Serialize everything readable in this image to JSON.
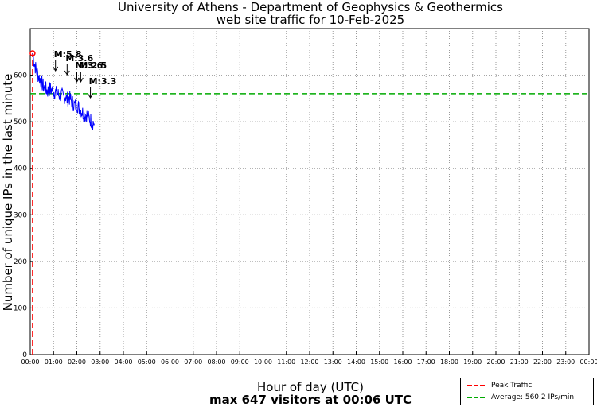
{
  "header": {
    "title": "University of Athens - Department of Geophysics & Geothermics",
    "subtitle": "web site traffic for 10-Feb-2025"
  },
  "footer": {
    "xlabel": "Hour of day (UTC)",
    "summary": "max 647 visitors at 00:06 UTC"
  },
  "legend": {
    "peak": "Peak Traffic",
    "average": "Average: 560.2 IPs/min"
  },
  "colors": {
    "traffic": "#0000ff",
    "peak": "#ff0000",
    "average": "#00aa00",
    "grid": "#9a9a9a"
  },
  "chart_data": {
    "type": "line",
    "title": "University of Athens - Department of Geophysics & Geothermics",
    "subtitle": "web site traffic for 10-Feb-2025",
    "xlabel": "Hour of day (UTC)",
    "ylabel": "Number of unique IPs in the last minute",
    "xlim": [
      "00:00",
      "24:00"
    ],
    "ylim": [
      0,
      700
    ],
    "grid": true,
    "x_ticks": [
      "00:00",
      "01:00",
      "02:00",
      "03:00",
      "04:00",
      "05:00",
      "06:00",
      "07:00",
      "08:00",
      "09:00",
      "10:00",
      "11:00",
      "12:00",
      "13:00",
      "14:00",
      "15:00",
      "16:00",
      "17:00",
      "18:00",
      "19:00",
      "20:00",
      "21:00",
      "22:00",
      "23:00",
      "00:00"
    ],
    "y_ticks": [
      0,
      100,
      200,
      300,
      400,
      500,
      600
    ],
    "series": [
      {
        "name": "traffic",
        "x": [
          "00:06",
          "00:10",
          "00:15",
          "00:20",
          "00:25",
          "00:30",
          "00:35",
          "00:40",
          "00:45",
          "00:50",
          "00:55",
          "01:00",
          "01:05",
          "01:10",
          "01:15",
          "01:20",
          "01:25",
          "01:30",
          "01:35",
          "01:40",
          "01:45",
          "01:50",
          "01:55",
          "02:00",
          "02:05",
          "02:10",
          "02:15",
          "02:20",
          "02:25",
          "02:30",
          "02:35",
          "02:40",
          "02:45"
        ],
        "values": [
          647,
          628,
          612,
          600,
          592,
          582,
          574,
          570,
          566,
          570,
          568,
          566,
          562,
          560,
          556,
          558,
          552,
          556,
          548,
          552,
          546,
          540,
          534,
          538,
          530,
          526,
          520,
          514,
          516,
          508,
          504,
          500,
          496
        ]
      },
      {
        "name": "Peak Traffic",
        "x": [
          "00:06",
          "00:06"
        ],
        "values": [
          0,
          647
        ]
      },
      {
        "name": "Average: 560.2 IPs/min",
        "x": [
          "00:00",
          "24:00"
        ],
        "values": [
          560.2,
          560.2
        ]
      }
    ],
    "peak": {
      "time": "00:06",
      "value": 647
    },
    "annotations": [
      {
        "label": "M:5.8",
        "time": "01:05"
      },
      {
        "label": "M:3.6",
        "time": "01:35"
      },
      {
        "label": "M:3.6",
        "time": "02:00"
      },
      {
        "label": "M:2.5",
        "time": "02:10"
      },
      {
        "label": "M:3.3",
        "time": "02:35"
      }
    ],
    "legend_position": "bottom-right"
  }
}
